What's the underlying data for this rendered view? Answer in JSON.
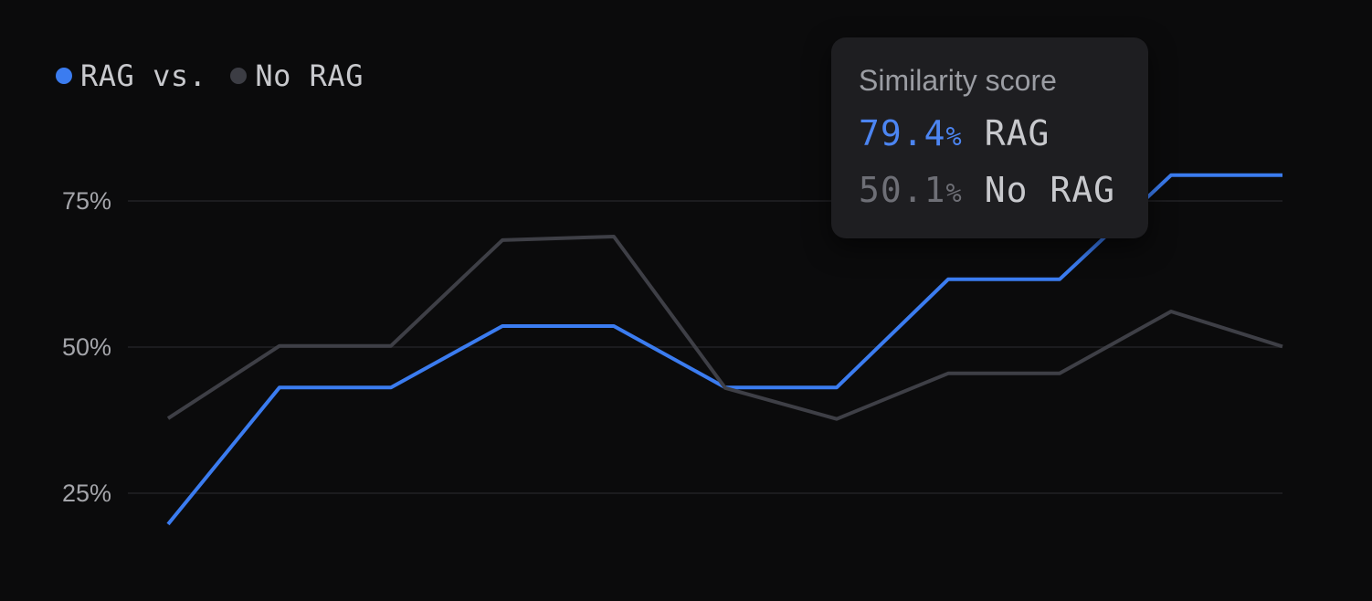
{
  "colors": {
    "background": "#0b0b0c",
    "gridline": "#1c1c1f",
    "rag_blue": "#3b7cf0",
    "no_rag_gray": "#3e3f46",
    "legend_text": "#c8c9cd",
    "tick_text": "#a4a5aa",
    "tooltip_bg": "#1e1e21",
    "tooltip_title_text": "#9b9da3",
    "tooltip_label_text": "#c8c9cd",
    "tooltip_value_blue": "#4c85f2",
    "tooltip_value_gray": "#6e6f76"
  },
  "legend": {
    "items": [
      {
        "label": "RAG vs.",
        "dot_color": "#3b7cf0"
      },
      {
        "label": "No RAG",
        "dot_color": "#3c3d44"
      }
    ]
  },
  "tooltip": {
    "title": "Similarity score",
    "rows": [
      {
        "value": "79.4",
        "suffix": "%",
        "label": "RAG",
        "color": "#4c85f2"
      },
      {
        "value": "50.1",
        "suffix": "%",
        "label": "No RAG",
        "color": "#6e6f76"
      }
    ]
  },
  "chart_data": {
    "type": "line",
    "title": "",
    "legend_entries": [
      "RAG",
      "No RAG"
    ],
    "legend_position": "top-left",
    "x_labels": [],
    "num_points": 11,
    "series": [
      {
        "name": "RAG",
        "color": "#3b7cf0",
        "values": [
          19.7,
          43.1,
          43.1,
          53.6,
          53.6,
          43.1,
          43.1,
          61.6,
          61.6,
          79.4,
          79.4
        ]
      },
      {
        "name": "No RAG",
        "color": "#3e3f46",
        "values": [
          37.8,
          50.2,
          50.2,
          68.3,
          68.9,
          43.0,
          37.7,
          45.5,
          45.5,
          56.1,
          50.1
        ]
      }
    ],
    "y_axis": {
      "unit": "%",
      "ticks": [
        {
          "label": "75%",
          "value": 75
        },
        {
          "label": "50%",
          "value": 50
        },
        {
          "label": "25%",
          "value": 25
        }
      ]
    },
    "ylim": [
      6.5,
      109
    ],
    "grid": "horizontal-only",
    "tooltip_readout": {
      "title": "Similarity score",
      "RAG": "79.4%",
      "No RAG": "50.1%"
    }
  }
}
